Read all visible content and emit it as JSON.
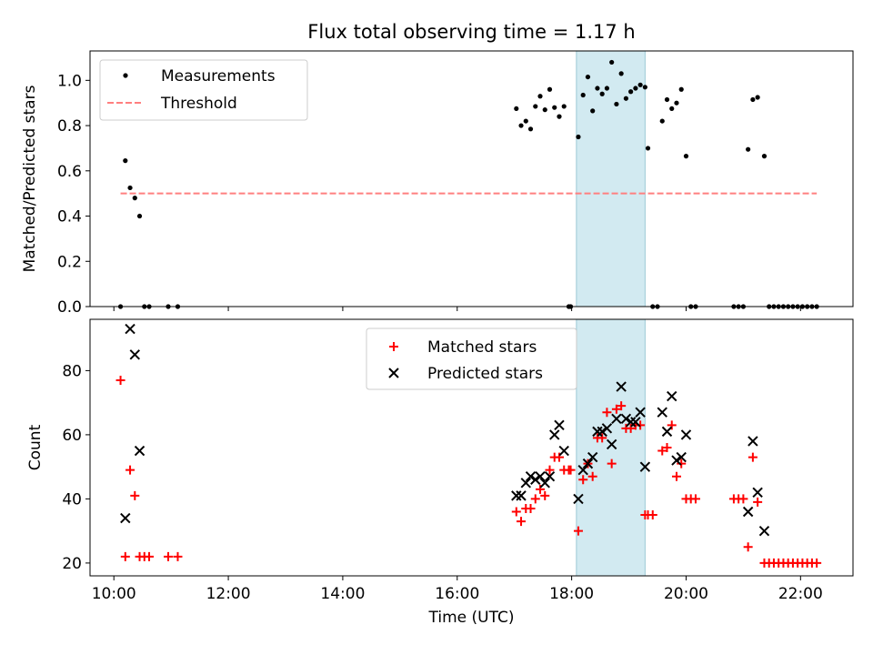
{
  "chart_data": [
    {
      "type": "scatter",
      "title": "Flux total observing time = 1.17 h",
      "xlabel": "",
      "ylabel": "Matched/Predicted stars",
      "xlim": [
        "09:35",
        "22:55"
      ],
      "ylim": [
        0,
        1.13
      ],
      "yticks": [
        "0.0",
        "0.2",
        "0.4",
        "0.6",
        "0.8",
        "1.0"
      ],
      "shaded_interval": [
        "18:05",
        "19:17"
      ],
      "legend": {
        "position": "upper left",
        "entries": [
          "Measurements",
          "Threshold"
        ]
      },
      "series": [
        {
          "name": "Measurements",
          "marker": "point",
          "color": "#000000",
          "points": [
            [
              "10:07",
              0.0
            ],
            [
              "10:12",
              0.645
            ],
            [
              "10:17",
              0.525
            ],
            [
              "10:22",
              0.48
            ],
            [
              "10:27",
              0.4
            ],
            [
              "10:32",
              0.0
            ],
            [
              "10:37",
              0.0
            ],
            [
              "10:57",
              0.0
            ],
            [
              "11:07",
              0.0
            ],
            [
              "17:02",
              0.875
            ],
            [
              "17:07",
              0.8
            ],
            [
              "17:12",
              0.82
            ],
            [
              "17:17",
              0.785
            ],
            [
              "17:22",
              0.885
            ],
            [
              "17:27",
              0.93
            ],
            [
              "17:32",
              0.87
            ],
            [
              "17:37",
              0.96
            ],
            [
              "17:42",
              0.88
            ],
            [
              "17:47",
              0.84
            ],
            [
              "17:52",
              0.885
            ],
            [
              "17:57",
              0.0
            ],
            [
              "17:59",
              0.0
            ],
            [
              "18:07",
              0.75
            ],
            [
              "18:12",
              0.935
            ],
            [
              "18:17",
              1.015
            ],
            [
              "18:22",
              0.865
            ],
            [
              "18:27",
              0.965
            ],
            [
              "18:32",
              0.94
            ],
            [
              "18:37",
              0.965
            ],
            [
              "18:42",
              1.08
            ],
            [
              "18:47",
              0.895
            ],
            [
              "18:52",
              1.03
            ],
            [
              "18:57",
              0.92
            ],
            [
              "19:02",
              0.95
            ],
            [
              "19:07",
              0.965
            ],
            [
              "19:12",
              0.98
            ],
            [
              "19:17",
              0.97
            ],
            [
              "19:20",
              0.7
            ],
            [
              "19:25",
              0.0
            ],
            [
              "19:30",
              0.0
            ],
            [
              "19:35",
              0.82
            ],
            [
              "19:40",
              0.915
            ],
            [
              "19:45",
              0.875
            ],
            [
              "19:50",
              0.9
            ],
            [
              "19:55",
              0.96
            ],
            [
              "20:00",
              0.665
            ],
            [
              "20:05",
              0.0
            ],
            [
              "20:10",
              0.0
            ],
            [
              "20:50",
              0.0
            ],
            [
              "20:55",
              0.0
            ],
            [
              "21:00",
              0.0
            ],
            [
              "21:05",
              0.695
            ],
            [
              "21:10",
              0.915
            ],
            [
              "21:15",
              0.925
            ],
            [
              "21:22",
              0.665
            ],
            [
              "21:27",
              0.0
            ],
            [
              "21:32",
              0.0
            ],
            [
              "21:37",
              0.0
            ],
            [
              "21:42",
              0.0
            ],
            [
              "21:47",
              0.0
            ],
            [
              "21:52",
              0.0
            ],
            [
              "21:57",
              0.0
            ],
            [
              "22:02",
              0.0
            ],
            [
              "22:07",
              0.0
            ],
            [
              "22:12",
              0.0
            ],
            [
              "22:17",
              0.0
            ]
          ]
        },
        {
          "name": "Threshold",
          "marker": "dashed-line",
          "color": "#ff7f7f",
          "points": [
            [
              "10:07",
              0.5
            ],
            [
              "22:17",
              0.5
            ]
          ]
        }
      ]
    },
    {
      "type": "scatter",
      "title": "",
      "xlabel": "Time (UTC)",
      "ylabel": "Count",
      "xlim": [
        "09:35",
        "22:55"
      ],
      "ylim": [
        16,
        96
      ],
      "xticks": [
        "10:00",
        "12:00",
        "14:00",
        "16:00",
        "18:00",
        "20:00",
        "22:00"
      ],
      "yticks": [
        "20",
        "40",
        "60",
        "80"
      ],
      "shaded_interval": [
        "18:05",
        "19:17"
      ],
      "legend": {
        "position": "upper center",
        "entries": [
          "Matched stars",
          "Predicted stars"
        ]
      },
      "series": [
        {
          "name": "Matched stars",
          "marker": "plus",
          "color": "#ff0000",
          "points": [
            [
              "10:07",
              77
            ],
            [
              "10:12",
              22
            ],
            [
              "10:17",
              49
            ],
            [
              "10:22",
              41
            ],
            [
              "10:27",
              22
            ],
            [
              "10:32",
              22
            ],
            [
              "10:37",
              22
            ],
            [
              "10:57",
              22
            ],
            [
              "11:07",
              22
            ],
            [
              "17:02",
              36
            ],
            [
              "17:07",
              33
            ],
            [
              "17:12",
              37
            ],
            [
              "17:17",
              37
            ],
            [
              "17:22",
              40
            ],
            [
              "17:27",
              43
            ],
            [
              "17:32",
              41
            ],
            [
              "17:37",
              49
            ],
            [
              "17:42",
              53
            ],
            [
              "17:47",
              53
            ],
            [
              "17:52",
              49
            ],
            [
              "17:57",
              49
            ],
            [
              "17:59",
              49
            ],
            [
              "18:07",
              30
            ],
            [
              "18:12",
              46
            ],
            [
              "18:17",
              51
            ],
            [
              "18:22",
              47
            ],
            [
              "18:27",
              59
            ],
            [
              "18:32",
              59
            ],
            [
              "18:37",
              67
            ],
            [
              "18:42",
              51
            ],
            [
              "18:47",
              68
            ],
            [
              "18:52",
              69
            ],
            [
              "18:57",
              62
            ],
            [
              "19:02",
              62
            ],
            [
              "19:07",
              63
            ],
            [
              "19:12",
              63
            ],
            [
              "19:17",
              35
            ],
            [
              "19:20",
              35
            ],
            [
              "19:25",
              35
            ],
            [
              "19:35",
              55
            ],
            [
              "19:40",
              56
            ],
            [
              "19:45",
              63
            ],
            [
              "19:50",
              47
            ],
            [
              "19:55",
              51
            ],
            [
              "20:00",
              40
            ],
            [
              "20:05",
              40
            ],
            [
              "20:10",
              40
            ],
            [
              "20:50",
              40
            ],
            [
              "20:55",
              40
            ],
            [
              "21:00",
              40
            ],
            [
              "21:05",
              25
            ],
            [
              "21:10",
              53
            ],
            [
              "21:15",
              39
            ],
            [
              "21:22",
              20
            ],
            [
              "21:27",
              20
            ],
            [
              "21:32",
              20
            ],
            [
              "21:37",
              20
            ],
            [
              "21:42",
              20
            ],
            [
              "21:47",
              20
            ],
            [
              "21:52",
              20
            ],
            [
              "21:57",
              20
            ],
            [
              "22:02",
              20
            ],
            [
              "22:07",
              20
            ],
            [
              "22:12",
              20
            ],
            [
              "22:17",
              20
            ]
          ]
        },
        {
          "name": "Predicted stars",
          "marker": "x",
          "color": "#000000",
          "points": [
            [
              "10:12",
              34
            ],
            [
              "10:17",
              93
            ],
            [
              "10:22",
              85
            ],
            [
              "10:27",
              55
            ],
            [
              "17:02",
              41
            ],
            [
              "17:07",
              41
            ],
            [
              "17:12",
              45
            ],
            [
              "17:17",
              47
            ],
            [
              "17:22",
              46
            ],
            [
              "17:27",
              47
            ],
            [
              "17:32",
              45
            ],
            [
              "17:37",
              47
            ],
            [
              "17:42",
              60
            ],
            [
              "17:47",
              63
            ],
            [
              "17:52",
              55
            ],
            [
              "18:07",
              40
            ],
            [
              "18:12",
              49
            ],
            [
              "18:17",
              51
            ],
            [
              "18:22",
              53
            ],
            [
              "18:27",
              61
            ],
            [
              "18:32",
              61
            ],
            [
              "18:37",
              62
            ],
            [
              "18:42",
              57
            ],
            [
              "18:47",
              65
            ],
            [
              "18:52",
              75
            ],
            [
              "18:57",
              65
            ],
            [
              "19:02",
              64
            ],
            [
              "19:07",
              64
            ],
            [
              "19:12",
              67
            ],
            [
              "19:17",
              50
            ],
            [
              "19:35",
              67
            ],
            [
              "19:40",
              61
            ],
            [
              "19:45",
              72
            ],
            [
              "19:50",
              52
            ],
            [
              "19:55",
              53
            ],
            [
              "20:00",
              60
            ],
            [
              "21:05",
              36
            ],
            [
              "21:10",
              58
            ],
            [
              "21:15",
              42
            ],
            [
              "21:22",
              30
            ]
          ]
        }
      ]
    }
  ]
}
